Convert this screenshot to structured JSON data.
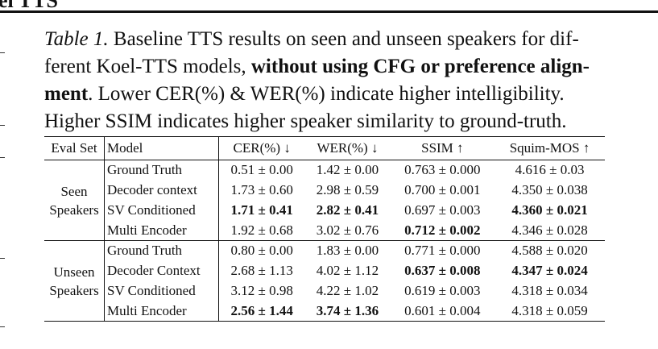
{
  "heading": "el TTS",
  "caption": {
    "label": "Table 1.",
    "line1": " Baseline TTS results on seen and unseen speakers for dif-",
    "line2a": "ferent Koel-TTS models, ",
    "line2b": "without using CFG or preference align-",
    "line3a": "ment",
    "line3b": ". Lower CER(%) & WER(%) indicate higher intelligibility.",
    "line4": "Higher SSIM indicates higher speaker similarity to ground-truth."
  },
  "table": {
    "header": [
      "Eval Set",
      "Model",
      "CER(%) ↓",
      "WER(%) ↓",
      "SSIM ↑",
      "Squim-MOS ↑"
    ],
    "groups": [
      {
        "name": "Seen Speakers",
        "rows": [
          {
            "model": "Ground Truth",
            "values": [
              "0.51 ± 0.00",
              "1.42 ± 0.00",
              "0.763 ± 0.000",
              "4.616 ± 0.03"
            ],
            "bold": [
              false,
              false,
              false,
              false
            ]
          },
          {
            "model": "Decoder context",
            "values": [
              "1.73 ± 0.60",
              "2.98 ± 0.59",
              "0.700 ± 0.001",
              "4.350 ± 0.038"
            ],
            "bold": [
              false,
              false,
              false,
              false
            ]
          },
          {
            "model": "SV Conditioned",
            "values": [
              "1.71 ± 0.41",
              "2.82 ± 0.41",
              "0.697 ± 0.003",
              "4.360 ± 0.021"
            ],
            "bold": [
              true,
              true,
              false,
              true
            ]
          },
          {
            "model": "Multi Encoder",
            "values": [
              "1.92 ± 0.68",
              "3.02 ± 0.76",
              "0.712 ± 0.002",
              "4.346 ± 0.028"
            ],
            "bold": [
              false,
              false,
              true,
              false
            ]
          }
        ]
      },
      {
        "name": "Unseen Speakers",
        "rows": [
          {
            "model": "Ground Truth",
            "values": [
              "0.80 ± 0.00",
              "1.83 ± 0.00",
              "0.771 ± 0.000",
              "4.588 ± 0.020"
            ],
            "bold": [
              false,
              false,
              false,
              false
            ]
          },
          {
            "model": "Decoder Context",
            "values": [
              "2.68 ± 1.13",
              "4.02 ± 1.12",
              "0.637 ± 0.008",
              "4.347 ± 0.024"
            ],
            "bold": [
              false,
              false,
              true,
              true
            ]
          },
          {
            "model": "SV Conditioned",
            "values": [
              "3.12 ± 0.98",
              "4.22 ± 1.02",
              "0.619 ± 0.003",
              "4.318 ± 0.034"
            ],
            "bold": [
              false,
              false,
              false,
              false
            ]
          },
          {
            "model": "Multi Encoder",
            "values": [
              "2.56 ± 1.44",
              "3.74 ± 1.36",
              "0.601 ± 0.004",
              "4.318 ± 0.059"
            ],
            "bold": [
              true,
              true,
              false,
              false
            ]
          }
        ]
      }
    ]
  }
}
